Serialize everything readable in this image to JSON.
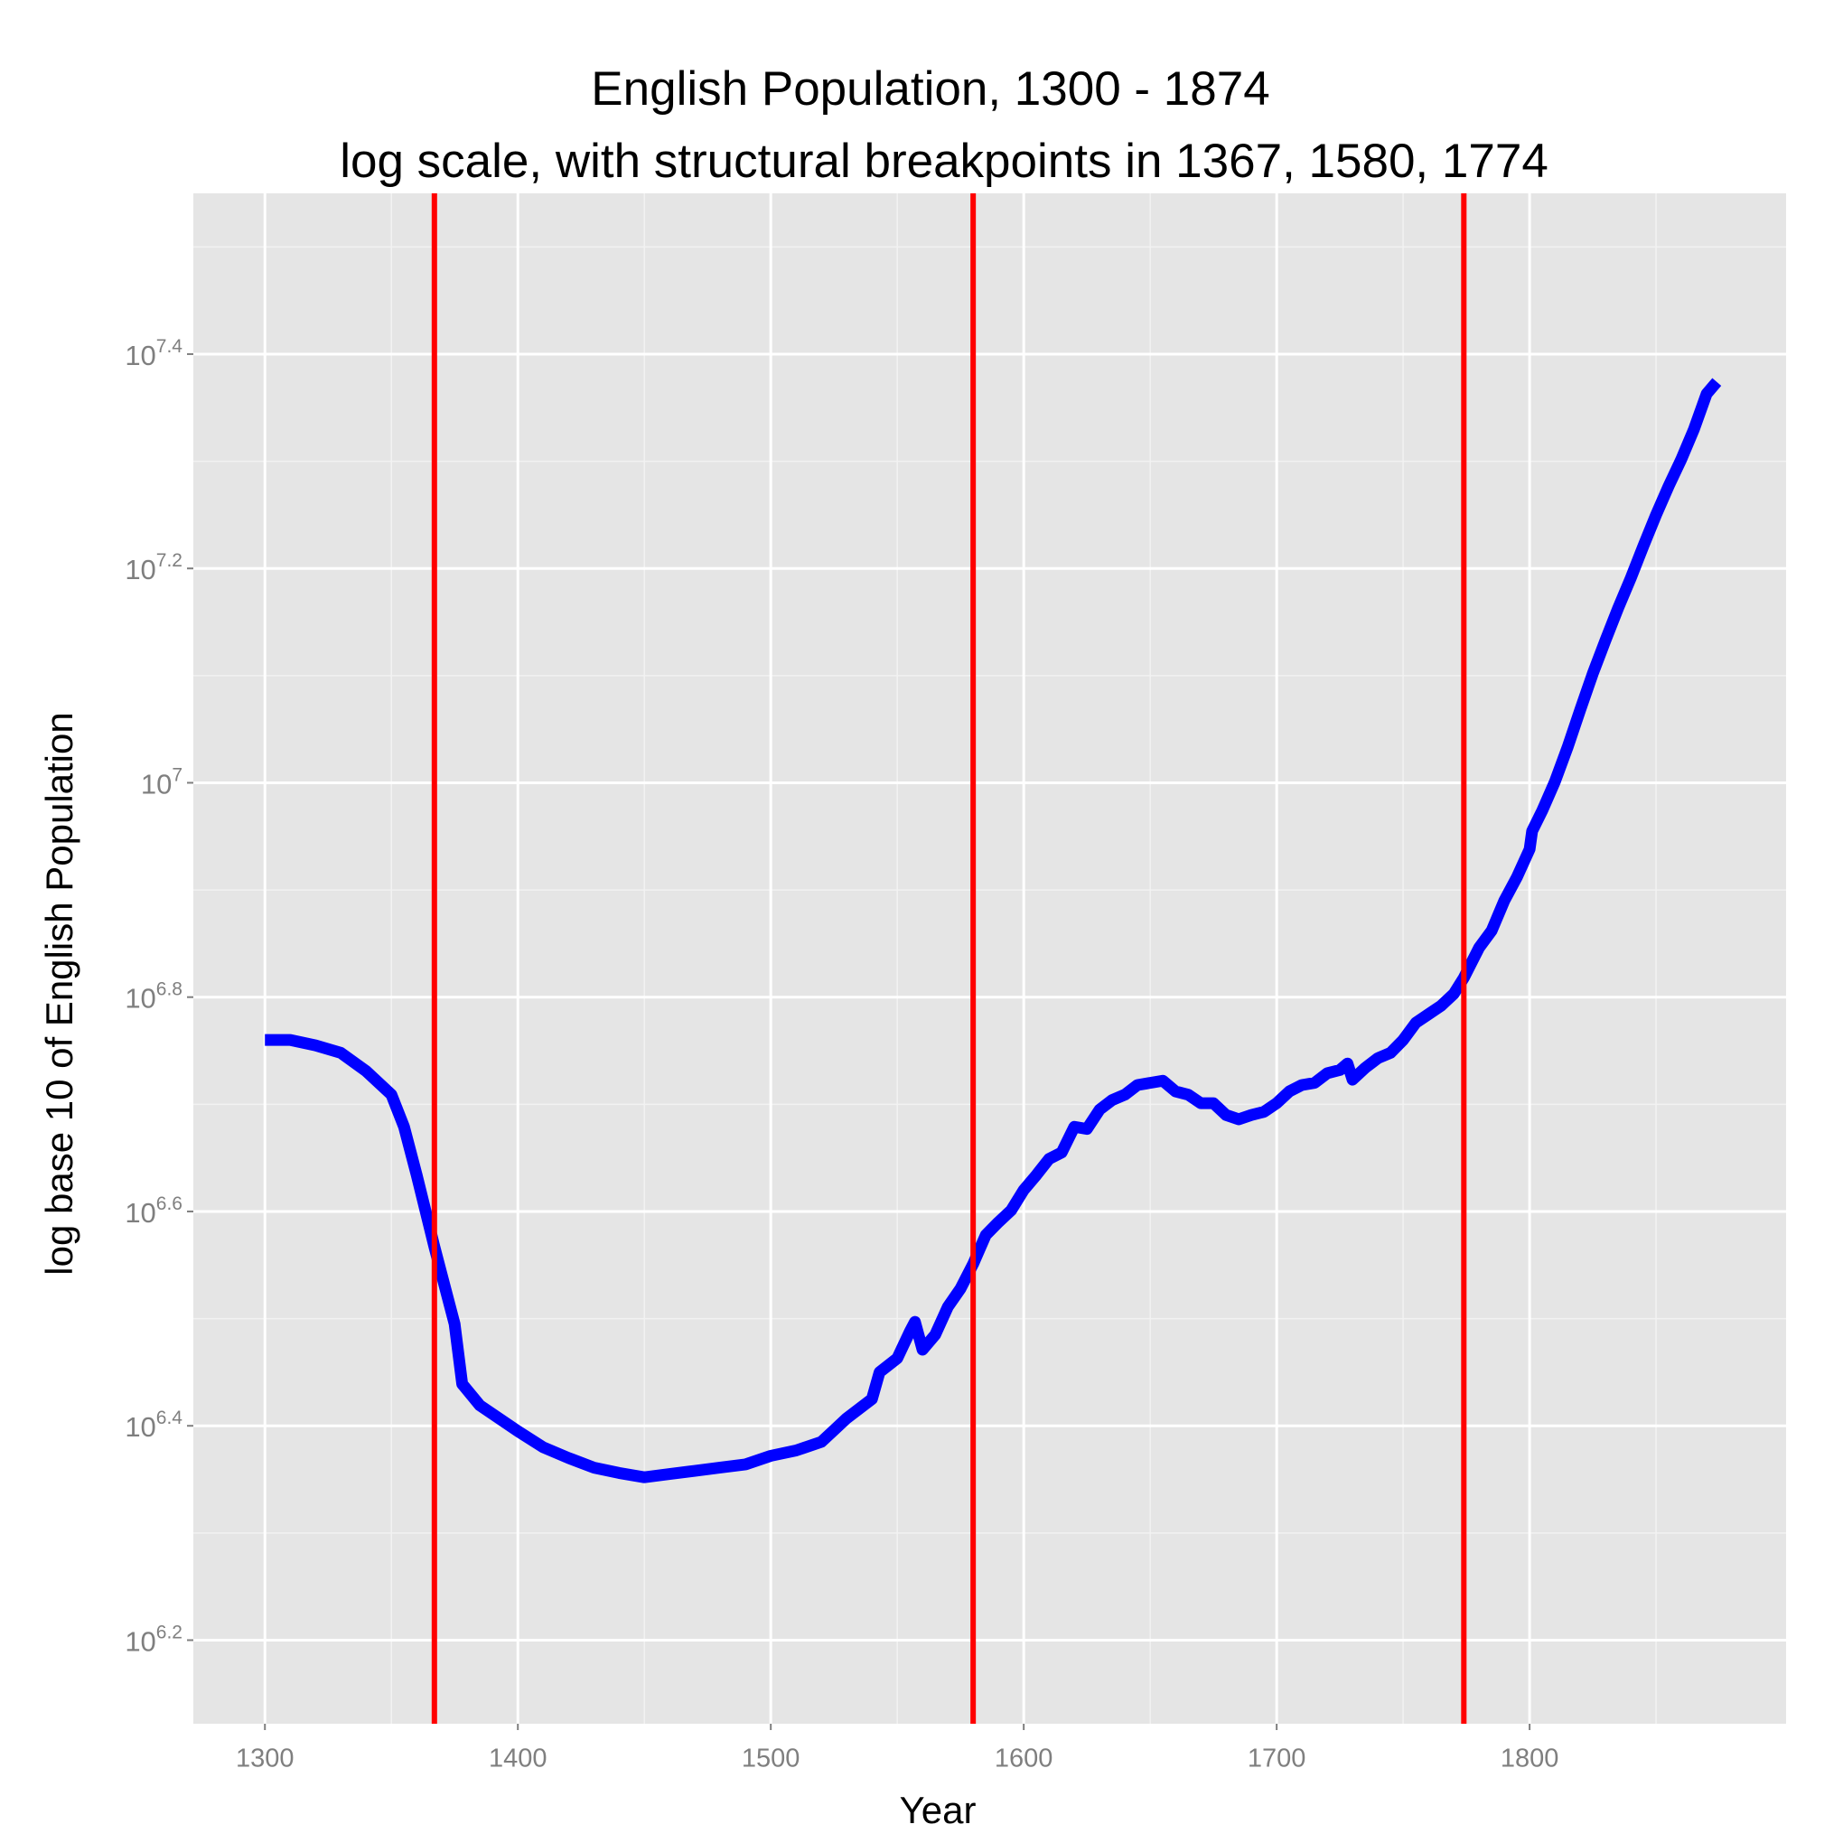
{
  "chart_data": {
    "type": "line",
    "title": "English Population, 1300 - 1874",
    "subtitle": "log scale, with structural breakpoints in 1367, 1580, 1774",
    "x_label": "Year",
    "y_label": "log base 10 of English Population",
    "x": [
      1300,
      1310,
      1320,
      1330,
      1340,
      1350,
      1355,
      1360,
      1367,
      1375,
      1378,
      1385,
      1400,
      1410,
      1420,
      1430,
      1440,
      1450,
      1460,
      1470,
      1480,
      1490,
      1500,
      1510,
      1520,
      1525,
      1530,
      1540,
      1543,
      1550,
      1555,
      1557,
      1560,
      1565,
      1570,
      1575,
      1580,
      1585,
      1590,
      1595,
      1600,
      1605,
      1610,
      1615,
      1620,
      1625,
      1630,
      1635,
      1640,
      1645,
      1650,
      1655,
      1660,
      1665,
      1670,
      1675,
      1680,
      1685,
      1690,
      1695,
      1700,
      1705,
      1710,
      1715,
      1720,
      1725,
      1728,
      1730,
      1735,
      1740,
      1745,
      1750,
      1755,
      1760,
      1765,
      1770,
      1774,
      1780,
      1785,
      1790,
      1795,
      1800,
      1801,
      1805,
      1810,
      1815,
      1820,
      1825,
      1830,
      1835,
      1840,
      1845,
      1850,
      1855,
      1860,
      1865,
      1870,
      1874
    ],
    "values": [
      6.76,
      6.76,
      6.755,
      6.748,
      6.731,
      6.709,
      6.679,
      6.634,
      6.567,
      6.495,
      6.439,
      6.419,
      6.395,
      6.38,
      6.37,
      6.361,
      6.356,
      6.352,
      6.355,
      6.358,
      6.361,
      6.364,
      6.372,
      6.377,
      6.385,
      6.396,
      6.407,
      6.425,
      6.45,
      6.463,
      6.488,
      6.497,
      6.471,
      6.485,
      6.511,
      6.528,
      6.551,
      6.578,
      6.59,
      6.601,
      6.62,
      6.634,
      6.649,
      6.655,
      6.679,
      6.677,
      6.695,
      6.704,
      6.709,
      6.718,
      6.72,
      6.722,
      6.712,
      6.709,
      6.701,
      6.701,
      6.69,
      6.686,
      6.69,
      6.693,
      6.701,
      6.712,
      6.718,
      6.72,
      6.729,
      6.732,
      6.738,
      6.723,
      6.734,
      6.743,
      6.748,
      6.76,
      6.776,
      6.784,
      6.792,
      6.803,
      6.818,
      6.846,
      6.862,
      6.89,
      6.912,
      6.938,
      6.955,
      6.974,
      7.001,
      7.033,
      7.068,
      7.102,
      7.133,
      7.163,
      7.191,
      7.221,
      7.25,
      7.277,
      7.302,
      7.33,
      7.363,
      7.374
    ],
    "color": "#0000ff",
    "vlines": [
      1367,
      1580,
      1774
    ],
    "vline_color": "#ff0000",
    "xlim": [
      1271.7,
      1901.4
    ],
    "xticks": [
      1300,
      1400,
      1500,
      1600,
      1700,
      1800
    ],
    "ylim": [
      6.122,
      7.55
    ],
    "ytick_base": "10",
    "yticks": [
      6.2,
      6.4,
      6.6,
      6.8,
      7,
      7.2,
      7.4
    ],
    "grid": true,
    "minor_grid": true
  }
}
